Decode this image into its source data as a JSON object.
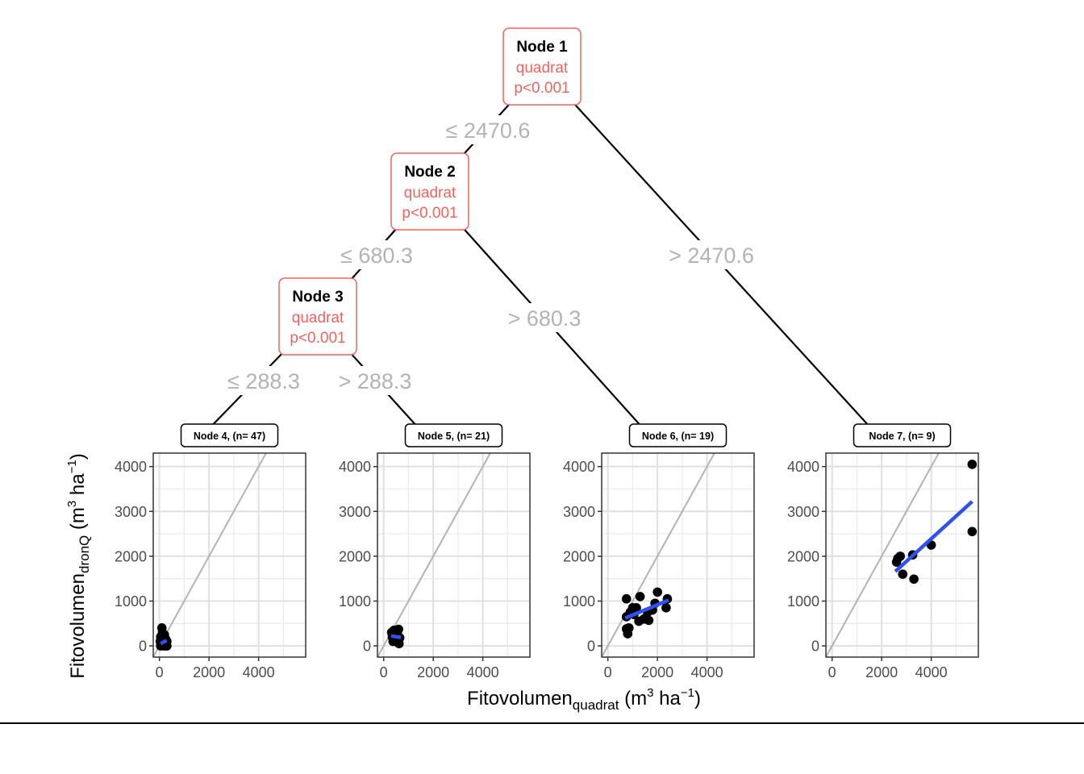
{
  "chart_data": {
    "type": "scatter",
    "title": "",
    "tree": {
      "nodes": [
        {
          "id": 1,
          "label": "Node 1",
          "variable": "quadrat",
          "pvalue": "p<0.001"
        },
        {
          "id": 2,
          "label": "Node 2",
          "variable": "quadrat",
          "pvalue": "p<0.001"
        },
        {
          "id": 3,
          "label": "Node 3",
          "variable": "quadrat",
          "pvalue": "p<0.001"
        }
      ],
      "edges": [
        {
          "from": 1,
          "to": 2,
          "label": "≤ 2470.6"
        },
        {
          "from": 1,
          "to": 7,
          "label": "> 2470.6"
        },
        {
          "from": 2,
          "to": 3,
          "label": "≤ 680.3"
        },
        {
          "from": 2,
          "to": 6,
          "label": "> 680.3"
        },
        {
          "from": 3,
          "to": 4,
          "label": "≤ 288.3"
        },
        {
          "from": 3,
          "to": 5,
          "label": "> 288.3"
        }
      ]
    },
    "xlabel": {
      "main": "Fitovolumen",
      "sub": "quadrat",
      "unit_pre": " (m",
      "unit_sup1": "3",
      "unit_mid": " ha",
      "unit_sup2": "−1",
      "unit_post": ")"
    },
    "ylabel": {
      "main": "Fitovolumen",
      "sub": "dronQ",
      "unit_pre": " (m",
      "unit_sup1": "3",
      "unit_mid": " ha",
      "unit_sup2": "−1",
      "unit_post": ")"
    },
    "xlim": [
      -250,
      5900
    ],
    "ylim": [
      -250,
      4300
    ],
    "xticks": [
      0,
      2000,
      4000
    ],
    "yticks": [
      0,
      1000,
      2000,
      3000,
      4000
    ],
    "identity_line": true,
    "grid": true,
    "panels": [
      {
        "node": 4,
        "label": "Node 4, (n= 47)",
        "points": [
          [
            100,
            400
          ],
          [
            200,
            250
          ],
          [
            50,
            200
          ],
          [
            150,
            150
          ],
          [
            250,
            150
          ],
          [
            300,
            100
          ],
          [
            200,
            50
          ],
          [
            120,
            80
          ],
          [
            80,
            20
          ],
          [
            50,
            0
          ],
          [
            200,
            0
          ],
          [
            300,
            0
          ],
          [
            250,
            80
          ],
          [
            120,
            300
          ],
          [
            180,
            200
          ],
          [
            90,
            120
          ],
          [
            60,
            50
          ],
          [
            220,
            120
          ],
          [
            280,
            30
          ],
          [
            30,
            100
          ]
        ],
        "fit": [
          [
            50,
            50
          ],
          [
            290,
            120
          ]
        ]
      },
      {
        "node": 5,
        "label": "Node 5, (n= 21)",
        "points": [
          [
            320,
            300
          ],
          [
            420,
            350
          ],
          [
            600,
            370
          ],
          [
            550,
            280
          ],
          [
            400,
            200
          ],
          [
            500,
            150
          ],
          [
            650,
            180
          ],
          [
            380,
            100
          ],
          [
            620,
            50
          ],
          [
            450,
            250
          ],
          [
            520,
            320
          ],
          [
            350,
            200
          ]
        ],
        "fit": [
          [
            300,
            220
          ],
          [
            690,
            190
          ]
        ]
      },
      {
        "node": 6,
        "label": "Node 6, (n= 19)",
        "points": [
          [
            750,
            1050
          ],
          [
            1300,
            1100
          ],
          [
            2000,
            1200
          ],
          [
            2400,
            1050
          ],
          [
            1900,
            950
          ],
          [
            2350,
            850
          ],
          [
            1150,
            850
          ],
          [
            750,
            650
          ],
          [
            1000,
            850
          ],
          [
            1600,
            750
          ],
          [
            1250,
            550
          ],
          [
            1450,
            600
          ],
          [
            1650,
            570
          ],
          [
            850,
            400
          ],
          [
            750,
            380
          ],
          [
            800,
            270
          ],
          [
            1050,
            700
          ],
          [
            900,
            750
          ],
          [
            1800,
            800
          ]
        ],
        "fit": [
          [
            700,
            620
          ],
          [
            2450,
            1020
          ]
        ]
      },
      {
        "node": 7,
        "label": "Node 7, (n= 9)",
        "points": [
          [
            5650,
            4050
          ],
          [
            5650,
            2550
          ],
          [
            4000,
            2250
          ],
          [
            3250,
            2030
          ],
          [
            2750,
            2000
          ],
          [
            2600,
            1870
          ],
          [
            2850,
            1600
          ],
          [
            3300,
            1490
          ],
          [
            2650,
            1950
          ]
        ],
        "fit": [
          [
            2550,
            1660
          ],
          [
            5650,
            3220
          ]
        ]
      }
    ]
  }
}
